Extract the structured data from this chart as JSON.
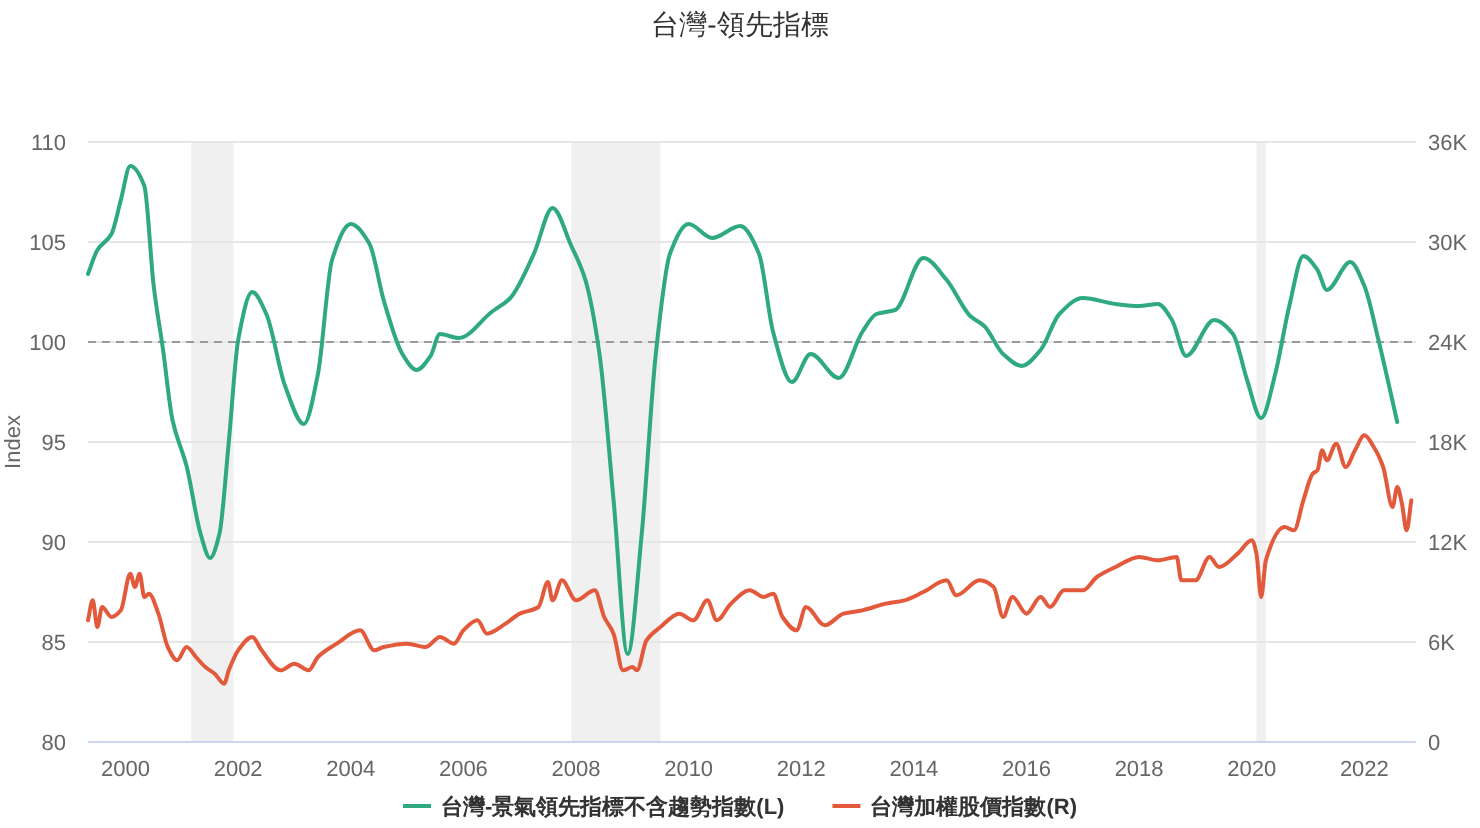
{
  "chart_data": {
    "type": "line",
    "title": "台灣-領先指標",
    "ylabel": "Index",
    "xlim": [
      "1999-05",
      "2022-12"
    ],
    "xticks": [
      "2000",
      "2002",
      "2004",
      "2006",
      "2008",
      "2010",
      "2012",
      "2014",
      "2016",
      "2018",
      "2020",
      "2022"
    ],
    "ylim": [
      80,
      110
    ],
    "yticks": [
      80,
      85,
      90,
      95,
      100,
      105,
      110
    ],
    "y2lim": [
      0,
      36000
    ],
    "y2ticks": [
      0,
      {
        "value": 6000,
        "label": "6K"
      },
      {
        "value": 12000,
        "label": "12K"
      },
      {
        "value": 18000,
        "label": "18K"
      },
      {
        "value": 24000,
        "label": "24K"
      },
      {
        "value": 30000,
        "label": "30K"
      },
      {
        "value": 36000,
        "label": "36K"
      }
    ],
    "grid": "y",
    "legend": "bottom",
    "ref_lines": [
      {
        "axis": "y",
        "value": 100,
        "color": "#9a9a9a",
        "line_style": "dashed"
      }
    ],
    "bands": [
      {
        "axis": "x",
        "from": "2001-03",
        "to": "2001-12",
        "color": "#f0f0f0"
      },
      {
        "axis": "x",
        "from": "2007-12",
        "to": "2009-07",
        "color": "#f0f0f0"
      },
      {
        "axis": "x",
        "from": "2020-02",
        "to": "2020-04",
        "color": "#f0f0f0"
      }
    ],
    "series": [
      {
        "name": "台灣-景氣領先指標不含趨勢指數(L)",
        "color": "#2eaa7e",
        "axis": "y",
        "x": [
          "1999-05",
          "1999-07",
          "1999-10",
          "1999-12",
          "2000-02",
          "2000-05",
          "2000-07",
          "2000-09",
          "2000-11",
          "2001-02",
          "2001-05",
          "2001-07",
          "2001-09",
          "2001-11",
          "2002-01",
          "2002-04",
          "2002-07",
          "2002-11",
          "2003-03",
          "2003-06",
          "2003-09",
          "2004-01",
          "2004-05",
          "2004-08",
          "2004-12",
          "2005-03",
          "2005-06",
          "2005-08",
          "2005-12",
          "2006-07",
          "2006-11",
          "2007-04",
          "2007-08",
          "2007-12",
          "2008-03",
          "2008-06",
          "2008-09",
          "2008-12",
          "2009-03",
          "2009-06",
          "2009-09",
          "2010-01",
          "2010-06",
          "2010-12",
          "2011-04",
          "2011-07",
          "2011-11",
          "2012-03",
          "2012-09",
          "2013-02",
          "2013-05",
          "2013-09",
          "2014-03",
          "2014-08",
          "2015-01",
          "2015-04",
          "2015-08",
          "2015-12",
          "2016-04",
          "2016-08",
          "2017-01",
          "2017-08",
          "2018-01",
          "2018-05",
          "2018-08",
          "2018-11",
          "2019-05",
          "2019-09",
          "2019-12",
          "2020-03",
          "2020-06",
          "2020-09",
          "2020-12",
          "2021-03",
          "2021-05",
          "2021-10",
          "2022-01",
          "2022-04",
          "2022-08"
        ],
        "values": [
          103.4,
          104.6,
          105.4,
          107.1,
          108.8,
          107.8,
          102.8,
          99.6,
          96.1,
          93.8,
          90.4,
          89.2,
          90.4,
          95.0,
          100.1,
          102.5,
          101.4,
          97.8,
          95.9,
          98.4,
          104.1,
          105.9,
          104.9,
          102.1,
          99.4,
          98.6,
          99.3,
          100.4,
          100.2,
          101.5,
          102.2,
          104.4,
          106.7,
          104.8,
          103.1,
          99.4,
          92.1,
          84.4,
          90.4,
          99.4,
          104.4,
          105.9,
          105.2,
          105.8,
          104.4,
          100.5,
          98.0,
          99.4,
          98.2,
          100.5,
          101.4,
          101.6,
          104.2,
          103.1,
          101.3,
          100.8,
          99.4,
          98.8,
          99.6,
          101.4,
          102.2,
          101.9,
          101.8,
          101.9,
          101.1,
          99.3,
          101.1,
          100.4,
          98.1,
          96.2,
          98.4,
          101.8,
          104.3,
          103.6,
          102.6,
          104.0,
          102.8,
          100.1,
          96.0
        ]
      },
      {
        "name": "台灣加權股價指數(R)",
        "color": "#e25a3b",
        "axis": "y2",
        "x": [
          "1999-05",
          "1999-06",
          "1999-07",
          "1999-08",
          "1999-10",
          "1999-12",
          "2000-02",
          "2000-03",
          "2000-04",
          "2000-05",
          "2000-06",
          "2000-08",
          "2000-10",
          "2000-12",
          "2001-02",
          "2001-04",
          "2001-06",
          "2001-08",
          "2001-10",
          "2001-11",
          "2002-01",
          "2002-04",
          "2002-06",
          "2002-10",
          "2003-01",
          "2003-04",
          "2003-06",
          "2003-10",
          "2004-03",
          "2004-06",
          "2004-08",
          "2005-01",
          "2005-05",
          "2005-08",
          "2005-11",
          "2006-01",
          "2006-04",
          "2006-06",
          "2006-10",
          "2007-01",
          "2007-05",
          "2007-07",
          "2007-08",
          "2007-10",
          "2008-01",
          "2008-05",
          "2008-07",
          "2008-09",
          "2008-11",
          "2009-01",
          "2009-02",
          "2009-04",
          "2009-07",
          "2009-11",
          "2010-02",
          "2010-05",
          "2010-07",
          "2010-10",
          "2011-02",
          "2011-05",
          "2011-07",
          "2011-09",
          "2011-12",
          "2012-02",
          "2012-06",
          "2012-10",
          "2013-02",
          "2013-07",
          "2013-11",
          "2014-03",
          "2014-08",
          "2014-10",
          "2015-03",
          "2015-06",
          "2015-08",
          "2015-10",
          "2016-01",
          "2016-04",
          "2016-06",
          "2016-09",
          "2017-01",
          "2017-04",
          "2017-08",
          "2018-01",
          "2018-05",
          "2018-09",
          "2018-10",
          "2019-01",
          "2019-04",
          "2019-06",
          "2019-10",
          "2020-01",
          "2020-02",
          "2020-03",
          "2020-04",
          "2020-08",
          "2020-10",
          "2020-12",
          "2021-02",
          "2021-03",
          "2021-04",
          "2021-05",
          "2021-07",
          "2021-09",
          "2021-11",
          "2022-01",
          "2022-03",
          "2022-05",
          "2022-07",
          "2022-08",
          "2022-09",
          "2022-10",
          "2022-11"
        ],
        "values": [
          7300,
          8500,
          6900,
          8100,
          7500,
          7900,
          10100,
          9300,
          10100,
          8700,
          8900,
          7700,
          5700,
          4900,
          5700,
          5100,
          4500,
          4100,
          3500,
          4300,
          5500,
          6300,
          5500,
          4300,
          4700,
          4300,
          5100,
          5900,
          6700,
          5500,
          5700,
          5900,
          5700,
          6300,
          5900,
          6700,
          7300,
          6500,
          7100,
          7700,
          8100,
          9600,
          8500,
          9700,
          8500,
          9100,
          7500,
          6500,
          4300,
          4500,
          4300,
          6100,
          6900,
          7700,
          7300,
          8500,
          7300,
          8300,
          9100,
          8700,
          8900,
          7500,
          6700,
          8100,
          7000,
          7700,
          7900,
          8300,
          8500,
          9000,
          9700,
          8800,
          9700,
          9300,
          7500,
          8700,
          7700,
          8700,
          8100,
          9100,
          9100,
          9900,
          10500,
          11100,
          10900,
          11100,
          9700,
          9700,
          11100,
          10500,
          11300,
          12100,
          11300,
          8700,
          10900,
          12900,
          12700,
          14500,
          16100,
          16300,
          17500,
          16900,
          17900,
          16500,
          17500,
          18400,
          17700,
          16500,
          14100,
          15300,
          14300,
          12700,
          14500
        ]
      }
    ]
  }
}
